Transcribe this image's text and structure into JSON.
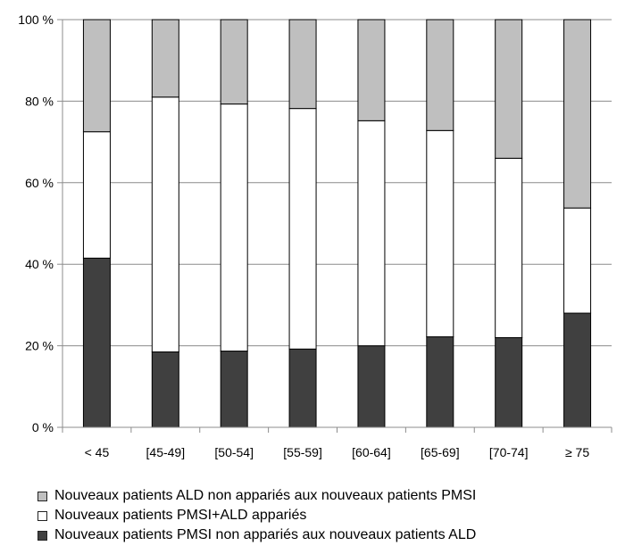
{
  "chart_data": {
    "type": "bar",
    "stacked": true,
    "normalized": true,
    "categories": [
      "< 45",
      "[45-49]",
      "[50-54]",
      "[55-59]",
      "[60-64]",
      "[65-69]",
      "[70-74]",
      "≥ 75"
    ],
    "series": [
      {
        "name": "Nouveaux patients PMSI non appariés aux nouveaux patients ALD",
        "color": "#404040",
        "values": [
          41.5,
          18.5,
          18.7,
          19.2,
          20.0,
          22.2,
          22.0,
          28.0
        ]
      },
      {
        "name": "Nouveaux patients PMSI+ALD appariés",
        "color": "#ffffff",
        "values": [
          31.0,
          62.5,
          60.6,
          59.0,
          55.2,
          50.6,
          44.0,
          25.8
        ]
      },
      {
        "name": "Nouveaux patients ALD non appariés aux nouveaux patients PMSI",
        "color": "#bfbfbf",
        "values": [
          27.5,
          19.0,
          20.7,
          21.8,
          24.8,
          27.2,
          34.0,
          46.2
        ]
      }
    ],
    "ylim": [
      0,
      100
    ],
    "yticks": [
      0,
      20,
      40,
      60,
      80,
      100
    ],
    "ytick_labels": [
      "0 %",
      "20 %",
      "40 %",
      "60 %",
      "80 %",
      "100 %"
    ],
    "grid": true,
    "legend_position": "bottom",
    "legend_order": [
      2,
      1,
      0
    ],
    "title": "",
    "xlabel": "",
    "ylabel": ""
  }
}
